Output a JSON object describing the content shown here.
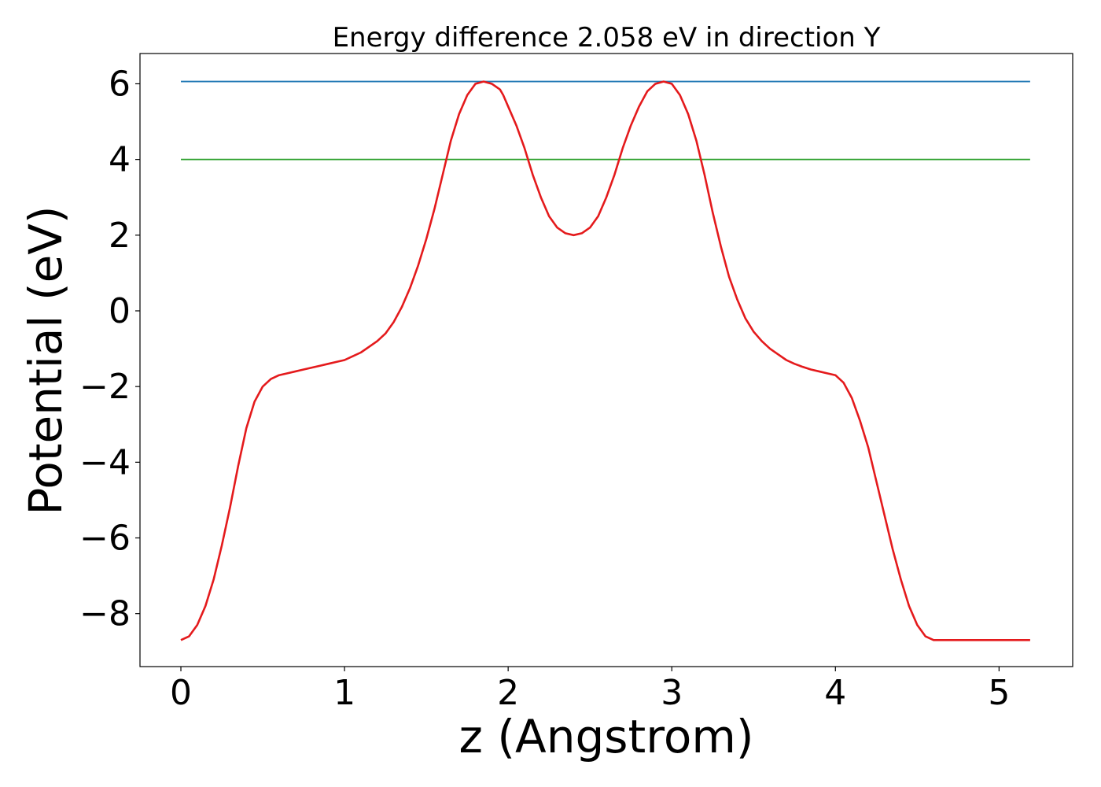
{
  "chart_data": {
    "type": "line",
    "title": "Energy difference 2.058 eV in direction Y",
    "xlabel": "z (Angstrom)",
    "ylabel": "Potential (eV)",
    "xlim": [
      -0.25,
      5.45
    ],
    "ylim": [
      -9.4,
      6.8
    ],
    "xticks": [
      0,
      1,
      2,
      3,
      4,
      5
    ],
    "xtick_labels": [
      "0",
      "1",
      "2",
      "3",
      "4",
      "5"
    ],
    "yticks": [
      -8,
      -6,
      -4,
      -2,
      0,
      2,
      4,
      6
    ],
    "ytick_labels": [
      "−8",
      "−6",
      "−4",
      "−2",
      "0",
      "2",
      "4",
      "6"
    ],
    "grid": false,
    "series": [
      {
        "color": "#1f77b4",
        "x": [
          0,
          5.19
        ],
        "y": [
          6.06,
          6.06
        ]
      },
      {
        "color": "#2ca02c",
        "x": [
          0,
          5.19
        ],
        "y": [
          4.0,
          4.0
        ]
      },
      {
        "color": "#e41a1c",
        "x": [
          0.0,
          0.05,
          0.1,
          0.15,
          0.2,
          0.25,
          0.3,
          0.35,
          0.4,
          0.45,
          0.5,
          0.55,
          0.6,
          0.65,
          0.7,
          0.75,
          0.8,
          0.85,
          0.9,
          0.95,
          1.0,
          1.05,
          1.1,
          1.15,
          1.2,
          1.25,
          1.3,
          1.35,
          1.4,
          1.45,
          1.5,
          1.55,
          1.6,
          1.65,
          1.7,
          1.75,
          1.8,
          1.85,
          1.9,
          1.95,
          1.97,
          2.0,
          2.05,
          2.1,
          2.15,
          2.2,
          2.25,
          2.3,
          2.35,
          2.4,
          2.45,
          2.5,
          2.55,
          2.6,
          2.65,
          2.7,
          2.75,
          2.8,
          2.85,
          2.9,
          2.95,
          3.0,
          3.05,
          3.1,
          3.15,
          3.2,
          3.25,
          3.3,
          3.35,
          3.4,
          3.45,
          3.5,
          3.55,
          3.6,
          3.65,
          3.7,
          3.75,
          3.8,
          3.85,
          3.9,
          3.95,
          4.0,
          4.05,
          4.1,
          4.15,
          4.2,
          4.25,
          4.3,
          4.35,
          4.4,
          4.45,
          4.5,
          4.55,
          4.6,
          4.65,
          4.7,
          4.75,
          4.8,
          4.85,
          4.9,
          4.95,
          5.0,
          5.05,
          5.1,
          5.15,
          5.19
        ],
        "y": [
          -8.7,
          -8.6,
          -8.3,
          -7.8,
          -7.1,
          -6.2,
          -5.2,
          -4.1,
          -3.1,
          -2.4,
          -2.0,
          -1.8,
          -1.7,
          -1.65,
          -1.6,
          -1.55,
          -1.5,
          -1.45,
          -1.4,
          -1.35,
          -1.3,
          -1.2,
          -1.1,
          -0.95,
          -0.8,
          -0.6,
          -0.3,
          0.1,
          0.6,
          1.2,
          1.9,
          2.7,
          3.6,
          4.5,
          5.2,
          5.7,
          6.0,
          6.06,
          6.0,
          5.85,
          5.7,
          5.4,
          4.9,
          4.3,
          3.6,
          3.0,
          2.5,
          2.2,
          2.05,
          2.0,
          2.05,
          2.2,
          2.5,
          3.0,
          3.6,
          4.3,
          4.9,
          5.4,
          5.8,
          6.0,
          6.06,
          6.0,
          5.7,
          5.2,
          4.5,
          3.6,
          2.6,
          1.7,
          0.9,
          0.3,
          -0.2,
          -0.55,
          -0.8,
          -1.0,
          -1.15,
          -1.3,
          -1.4,
          -1.48,
          -1.55,
          -1.6,
          -1.65,
          -1.7,
          -1.9,
          -2.3,
          -2.9,
          -3.6,
          -4.5,
          -5.4,
          -6.3,
          -7.1,
          -7.8,
          -8.3,
          -8.6,
          -8.7,
          -8.7,
          -8.7,
          -8.7,
          -8.7,
          -8.7,
          -8.7,
          -8.7,
          -8.7,
          -8.7,
          -8.7,
          -8.7,
          -8.7
        ]
      }
    ]
  }
}
